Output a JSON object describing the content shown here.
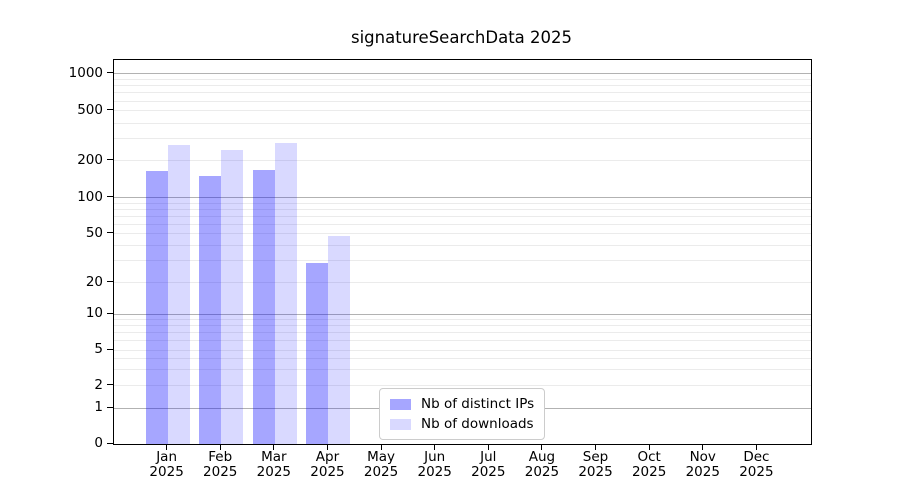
{
  "chart_data": {
    "type": "bar",
    "title": "signatureSearchData 2025",
    "year": "2025",
    "categories": [
      "Jan",
      "Feb",
      "Mar",
      "Apr",
      "May",
      "Jun",
      "Jul",
      "Aug",
      "Sep",
      "Oct",
      "Nov",
      "Dec"
    ],
    "series": [
      {
        "name": "Nb of distinct IPs",
        "color": "rgba(0,0,255,0.35)",
        "values": [
          165,
          152,
          170,
          29,
          null,
          null,
          null,
          null,
          null,
          null,
          null,
          null
        ]
      },
      {
        "name": "Nb of downloads",
        "color": "rgba(0,0,255,0.15)",
        "values": [
          268,
          243,
          280,
          48,
          null,
          null,
          null,
          null,
          null,
          null,
          null,
          null
        ]
      }
    ],
    "xlabel": "",
    "ylabel": "",
    "yticks": [
      0,
      1,
      2,
      5,
      10,
      20,
      50,
      100,
      200,
      500,
      1000
    ],
    "scale": "quasi-log (0,1,2,5,10,... ticks)",
    "scale_anchors": [
      [
        0,
        0.0
      ],
      [
        1,
        0.0937
      ],
      [
        2,
        0.1517
      ],
      [
        5,
        0.2446
      ],
      [
        10,
        0.3383
      ],
      [
        20,
        0.4205
      ],
      [
        50,
        0.548
      ],
      [
        100,
        0.6409
      ],
      [
        200,
        0.7372
      ],
      [
        500,
        0.8673
      ],
      [
        1000,
        0.9644
      ]
    ],
    "major_gridlines": [
      1,
      10,
      100,
      1000
    ],
    "minor_gridlines": [
      2,
      3,
      4,
      5,
      6,
      7,
      8,
      9,
      20,
      30,
      40,
      50,
      60,
      70,
      80,
      90,
      200,
      300,
      400,
      500,
      600,
      700,
      800,
      900
    ],
    "grid": "both",
    "legend_position": "lower center",
    "legend_items": [
      "Nb of distinct IPs",
      "Nb of downloads"
    ]
  }
}
